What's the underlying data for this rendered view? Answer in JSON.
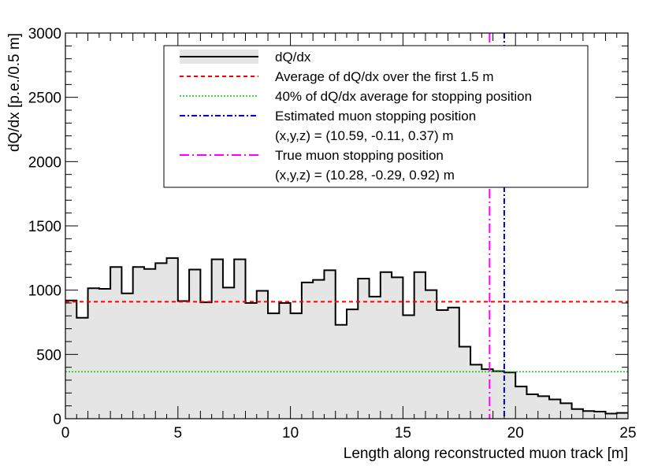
{
  "chart_data": {
    "type": "histogram",
    "xlabel": "Length along reconstructed muon track [m]",
    "ylabel": "dQ/dx [p.e./0.5 m]",
    "xlim": [
      0,
      25
    ],
    "ylim": [
      0,
      3000
    ],
    "x_ticks": [
      0,
      5,
      10,
      15,
      20,
      25
    ],
    "y_ticks": [
      0,
      500,
      1000,
      1500,
      2000,
      2500,
      3000
    ],
    "bin_width": 0.5,
    "dqdx_values": [
      920,
      785,
      1015,
      1010,
      1180,
      975,
      1180,
      1165,
      1210,
      1250,
      915,
      1160,
      905,
      1240,
      1020,
      1240,
      900,
      995,
      820,
      900,
      820,
      1060,
      1080,
      1155,
      730,
      850,
      1090,
      950,
      1140,
      1100,
      805,
      1140,
      1000,
      845,
      865,
      560,
      420,
      385,
      370,
      360,
      250,
      190,
      175,
      150,
      120,
      75,
      60,
      55,
      40,
      45
    ],
    "average_first_1p5m": 910,
    "threshold_40pct": 365,
    "estimated_stop_x": 19.5,
    "true_stop_x": 18.85,
    "colors": {
      "histogram_line": "#000000",
      "histogram_fill": "#e5e5e5",
      "average": "#ff0000",
      "threshold": "#00cc00",
      "estimated": "#0000cc",
      "true": "#ff00ff"
    },
    "legend": {
      "placement": "top-center",
      "entries": [
        {
          "label": "dQ/dx",
          "style": "histogram"
        },
        {
          "label": "Average of dQ/dx over the first 1.5 m",
          "style": "average"
        },
        {
          "label": "40% of dQ/dx average for stopping position",
          "style": "threshold"
        },
        {
          "label": "Estimated muon stopping position",
          "style": "estimated",
          "sublabel": "(x,y,z) = (10.59, -0.11, 0.37) m"
        },
        {
          "label": "True muon stopping position",
          "style": "true",
          "sublabel": "(x,y,z) = (10.28, -0.29, 0.92) m"
        }
      ]
    }
  }
}
